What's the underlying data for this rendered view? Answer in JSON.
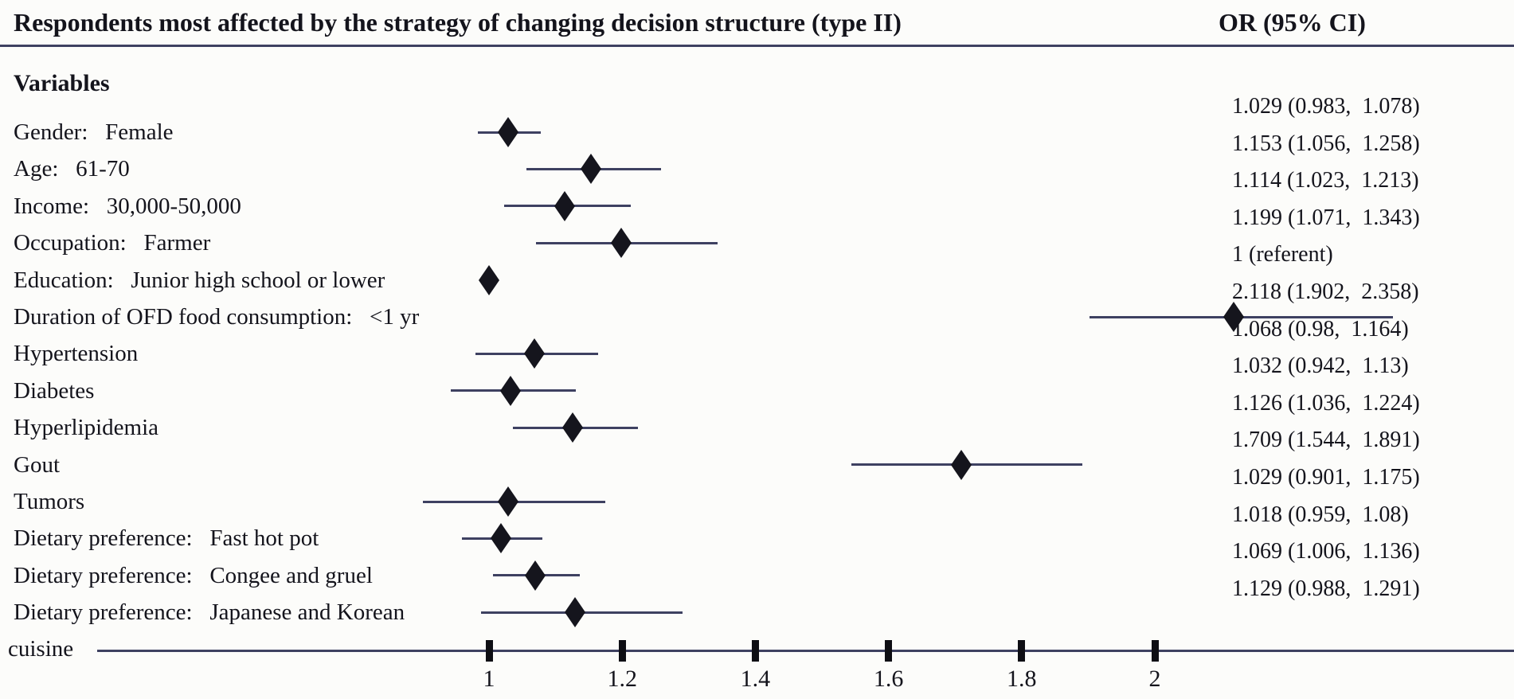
{
  "header": {
    "title": "Respondents most affected by the strategy of changing decision structure (type II)",
    "or_column_label": "OR（95% CI）"
  },
  "section_label": "Variables",
  "colors": {
    "background": "#fcfcfa",
    "line": "#3e4161",
    "marker": "#15151d",
    "text": "#14141c"
  },
  "chart_data": {
    "type": "scatter",
    "variant": "forest-plot",
    "title": "Respondents most affected by the strategy of changing decision structure (type II)",
    "value_column_header": "OR（95% CI）",
    "xlabel": "",
    "ylabel": "Variables",
    "xlim": [
      0.27,
      2.54
    ],
    "x_tick_values": [
      1,
      1.2,
      1.4,
      1.6,
      1.8,
      2
    ],
    "x_tick_labels": [
      "1",
      "1.2",
      "1.4",
      "1.6",
      "1.8",
      "2"
    ],
    "grid": false,
    "legend": "none",
    "marker_shape": "filled-diamond",
    "rows": [
      {
        "label": "Gender： Female",
        "or": 1.029,
        "ci_low": 0.983,
        "ci_high": 1.078,
        "referent": false,
        "display": "1.029（0.983，1.078）"
      },
      {
        "label": "Age： 61-70",
        "or": 1.153,
        "ci_low": 1.056,
        "ci_high": 1.258,
        "referent": false,
        "display": "1.153（1.056，1.258）"
      },
      {
        "label": "Income： 30,000-50,000",
        "or": 1.114,
        "ci_low": 1.023,
        "ci_high": 1.213,
        "referent": false,
        "display": "1.114（1.023，1.213）"
      },
      {
        "label": "Occupation： Farmer",
        "or": 1.199,
        "ci_low": 1.071,
        "ci_high": 1.343,
        "referent": false,
        "display": "1.199（1.071，1.343）"
      },
      {
        "label": "Education： Junior high school or lower",
        "or": 1,
        "ci_low": null,
        "ci_high": null,
        "referent": true,
        "display": "1（referent）"
      },
      {
        "label": "Duration of OFD food consumption： <1 yr",
        "or": 2.118,
        "ci_low": 1.902,
        "ci_high": 2.358,
        "referent": false,
        "display": "2.118（1.902，2.358）"
      },
      {
        "label": "Hypertension",
        "or": 1.068,
        "ci_low": 0.98,
        "ci_high": 1.164,
        "referent": false,
        "display": "1.068（0.98，1.164）"
      },
      {
        "label": "Diabetes",
        "or": 1.032,
        "ci_low": 0.942,
        "ci_high": 1.13,
        "referent": false,
        "display": "1.032（0.942，1.13）"
      },
      {
        "label": "Hyperlipidemia",
        "or": 1.126,
        "ci_low": 1.036,
        "ci_high": 1.224,
        "referent": false,
        "display": "1.126（1.036，1.224）"
      },
      {
        "label": "Gout",
        "or": 1.709,
        "ci_low": 1.544,
        "ci_high": 1.891,
        "referent": false,
        "display": "1.709（1.544，1.891）"
      },
      {
        "label": "Tumors",
        "or": 1.029,
        "ci_low": 0.901,
        "ci_high": 1.175,
        "referent": false,
        "display": "1.029（0.901，1.175）"
      },
      {
        "label": "Dietary preference： Fast hot pot",
        "or": 1.018,
        "ci_low": 0.959,
        "ci_high": 1.08,
        "referent": false,
        "display": "1.018（0.959，1.08）"
      },
      {
        "label": "Dietary preference： Congee and gruel",
        "or": 1.069,
        "ci_low": 1.006,
        "ci_high": 1.136,
        "referent": false,
        "display": "1.069（1.006，1.136）"
      },
      {
        "label": "Dietary preference： Japanese and Korean",
        "label_line2": "cuisine",
        "or": 1.129,
        "ci_low": 0.988,
        "ci_high": 1.291,
        "referent": false,
        "display": "1.129（0.988，1.291）"
      }
    ]
  }
}
